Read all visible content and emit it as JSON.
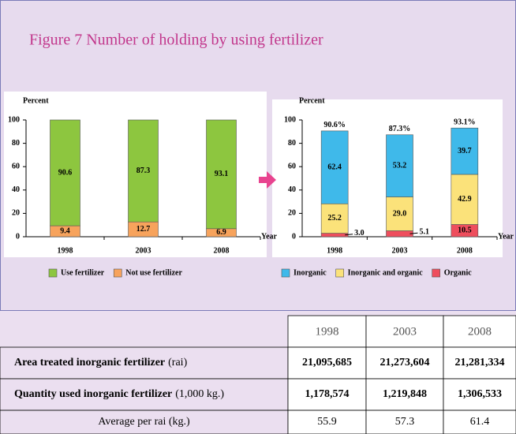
{
  "title": "Figure  7   Number of holding  by using fertilizer",
  "chart_data": [
    {
      "type": "stacked_bar",
      "ylabel": "Percent",
      "xlabel": "Year",
      "categories": [
        "1998",
        "2003",
        "2008"
      ],
      "series": [
        {
          "name": "Not use fertilizer",
          "color": "#f7a35c",
          "values": [
            9.4,
            12.7,
            6.9
          ]
        },
        {
          "name": "Use fertilizer",
          "color": "#8dc63f",
          "values": [
            90.6,
            87.3,
            93.1
          ]
        }
      ],
      "ylim": [
        0,
        100
      ],
      "yticks": [
        0,
        20,
        40,
        60,
        80,
        100
      ]
    },
    {
      "type": "stacked_bar",
      "ylabel": "Percent",
      "xlabel": "Year",
      "categories": [
        "1998",
        "2003",
        "2008"
      ],
      "series": [
        {
          "name": "Organic",
          "color": "#ee4e5d",
          "values": [
            3.0,
            5.1,
            10.5
          ],
          "value_labels": [
            "3.0",
            "5.1",
            "10.5"
          ]
        },
        {
          "name": "Inorganic and organic",
          "color": "#fbe27a",
          "values": [
            25.2,
            29.0,
            42.9
          ],
          "value_labels": [
            "25.2",
            "29.0",
            "42.9"
          ]
        },
        {
          "name": "Inorganic",
          "color": "#3fb9ea",
          "values": [
            62.4,
            53.2,
            39.7
          ]
        }
      ],
      "totals": [
        90.6,
        87.3,
        93.1
      ],
      "total_labels": [
        "90.6%",
        "87.3%",
        "93.1%"
      ],
      "ylim": [
        0,
        100
      ],
      "yticks": [
        0,
        20,
        40,
        60,
        80,
        100
      ]
    }
  ],
  "table": {
    "columns": [
      "1998",
      "2003",
      "2008"
    ],
    "rows": [
      {
        "label": "Area treated inorganic fertilizer",
        "unit": "(rai)",
        "values": [
          "21,095,685",
          "21,273,604",
          "21,281,334"
        ]
      },
      {
        "label": "Quantity used inorganic fertilizer",
        "unit": "(1,000 kg.)",
        "values": [
          "1,178,574",
          "1,219,848",
          "1,306,533"
        ]
      },
      {
        "label": "Average per rai (kg.)",
        "values": [
          "55.9",
          "57.3",
          "61.4"
        ]
      }
    ]
  }
}
